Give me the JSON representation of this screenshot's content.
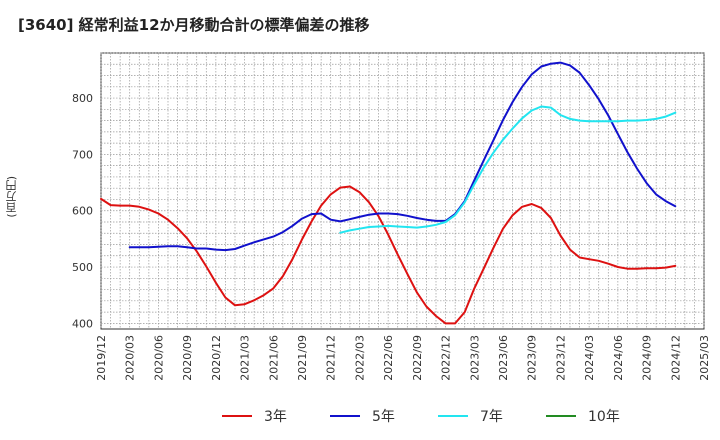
{
  "chart_data": {
    "type": "line",
    "title": "[3640]  経常利益12か月移動合計の標準偏差の推移",
    "ylabel": "(百万円)",
    "xlabel": "",
    "ylim": [
      390,
      880
    ],
    "yticks": [
      400,
      500,
      600,
      700,
      800
    ],
    "xticks": [
      "2019/12",
      "2020/03",
      "2020/06",
      "2020/09",
      "2020/12",
      "2021/03",
      "2021/06",
      "2021/09",
      "2021/12",
      "2022/03",
      "2022/06",
      "2022/09",
      "2022/12",
      "2023/03",
      "2023/06",
      "2023/09",
      "2023/12",
      "2024/03",
      "2024/06",
      "2024/09",
      "2024/12",
      "2025/03"
    ],
    "grid": true,
    "legend_position": "bottom",
    "series": [
      {
        "name": "3年",
        "color": "#dd1111",
        "x": [
          "2019/12",
          "2020/01",
          "2020/02",
          "2020/03",
          "2020/04",
          "2020/05",
          "2020/06",
          "2020/07",
          "2020/08",
          "2020/09",
          "2020/10",
          "2020/11",
          "2020/12",
          "2021/01",
          "2021/02",
          "2021/03",
          "2021/04",
          "2021/05",
          "2021/06",
          "2021/07",
          "2021/08",
          "2021/09",
          "2021/10",
          "2021/11",
          "2021/12",
          "2022/01",
          "2022/02",
          "2022/03",
          "2022/04",
          "2022/05",
          "2022/06",
          "2022/07",
          "2022/08",
          "2022/09",
          "2022/10",
          "2022/11",
          "2022/12",
          "2023/01",
          "2023/02",
          "2023/03",
          "2023/04",
          "2023/05",
          "2023/06",
          "2023/07",
          "2023/08",
          "2023/09",
          "2023/10",
          "2023/11",
          "2023/12",
          "2024/01",
          "2024/02",
          "2024/03",
          "2024/04",
          "2024/05",
          "2024/06",
          "2024/07",
          "2024/08",
          "2024/09",
          "2024/10",
          "2024/11",
          "2024/12"
        ],
        "values": [
          621,
          610,
          609,
          609,
          607,
          602,
          595,
          584,
          569,
          551,
          528,
          501,
          472,
          446,
          432,
          434,
          441,
          450,
          462,
          484,
          514,
          549,
          581,
          609,
          629,
          641,
          643,
          633,
          615,
          590,
          558,
          522,
          488,
          455,
          430,
          413,
          400,
          400,
          420,
          462,
          498,
          534,
          568,
          592,
          607,
          612,
          605,
          587,
          556,
          531,
          517,
          514,
          511,
          506,
          500,
          497,
          497,
          498,
          498,
          499,
          502
        ]
      },
      {
        "name": "5年",
        "color": "#1111cc",
        "x": [
          "2020/03",
          "2020/04",
          "2020/05",
          "2020/06",
          "2020/07",
          "2020/08",
          "2020/09",
          "2020/10",
          "2020/11",
          "2020/12",
          "2021/01",
          "2021/02",
          "2021/03",
          "2021/04",
          "2021/05",
          "2021/06",
          "2021/07",
          "2021/08",
          "2021/09",
          "2021/10",
          "2021/11",
          "2021/12",
          "2022/01",
          "2022/02",
          "2022/03",
          "2022/04",
          "2022/05",
          "2022/06",
          "2022/07",
          "2022/08",
          "2022/09",
          "2022/10",
          "2022/11",
          "2022/12",
          "2023/01",
          "2023/02",
          "2023/03",
          "2023/04",
          "2023/05",
          "2023/06",
          "2023/07",
          "2023/08",
          "2023/09",
          "2023/10",
          "2023/11",
          "2023/12",
          "2024/01",
          "2024/02",
          "2024/03",
          "2024/04",
          "2024/05",
          "2024/06",
          "2024/07",
          "2024/08",
          "2024/09",
          "2024/10",
          "2024/11",
          "2024/12"
        ],
        "values": [
          535,
          535,
          535,
          536,
          537,
          537,
          535,
          533,
          533,
          531,
          530,
          532,
          538,
          544,
          549,
          554,
          562,
          573,
          586,
          594,
          595,
          584,
          581,
          585,
          589,
          593,
          595,
          595,
          594,
          591,
          587,
          584,
          582,
          582,
          594,
          617,
          654,
          690,
          725,
          761,
          793,
          820,
          842,
          856,
          861,
          863,
          858,
          845,
          823,
          798,
          769,
          736,
          704,
          675,
          649,
          629,
          617,
          608
        ]
      },
      {
        "name": "7年",
        "color": "#22e5f0",
        "x": [
          "2022/01",
          "2022/02",
          "2022/03",
          "2022/04",
          "2022/05",
          "2022/06",
          "2022/07",
          "2022/08",
          "2022/09",
          "2022/10",
          "2022/11",
          "2022/12",
          "2023/01",
          "2023/02",
          "2023/03",
          "2023/04",
          "2023/05",
          "2023/06",
          "2023/07",
          "2023/08",
          "2023/09",
          "2023/10",
          "2023/11",
          "2023/12",
          "2024/01",
          "2024/02",
          "2024/03",
          "2024/04",
          "2024/05",
          "2024/06",
          "2024/07",
          "2024/08",
          "2024/09",
          "2024/10",
          "2024/11",
          "2024/12"
        ],
        "values": [
          561,
          565,
          568,
          571,
          572,
          573,
          572,
          571,
          570,
          572,
          575,
          580,
          592,
          615,
          647,
          677,
          703,
          726,
          746,
          764,
          778,
          785,
          783,
          770,
          763,
          760,
          759,
          759,
          759,
          759,
          760,
          760,
          761,
          763,
          767,
          774
        ]
      },
      {
        "name": "10年",
        "color": "#228b22",
        "x": [],
        "values": []
      }
    ]
  }
}
